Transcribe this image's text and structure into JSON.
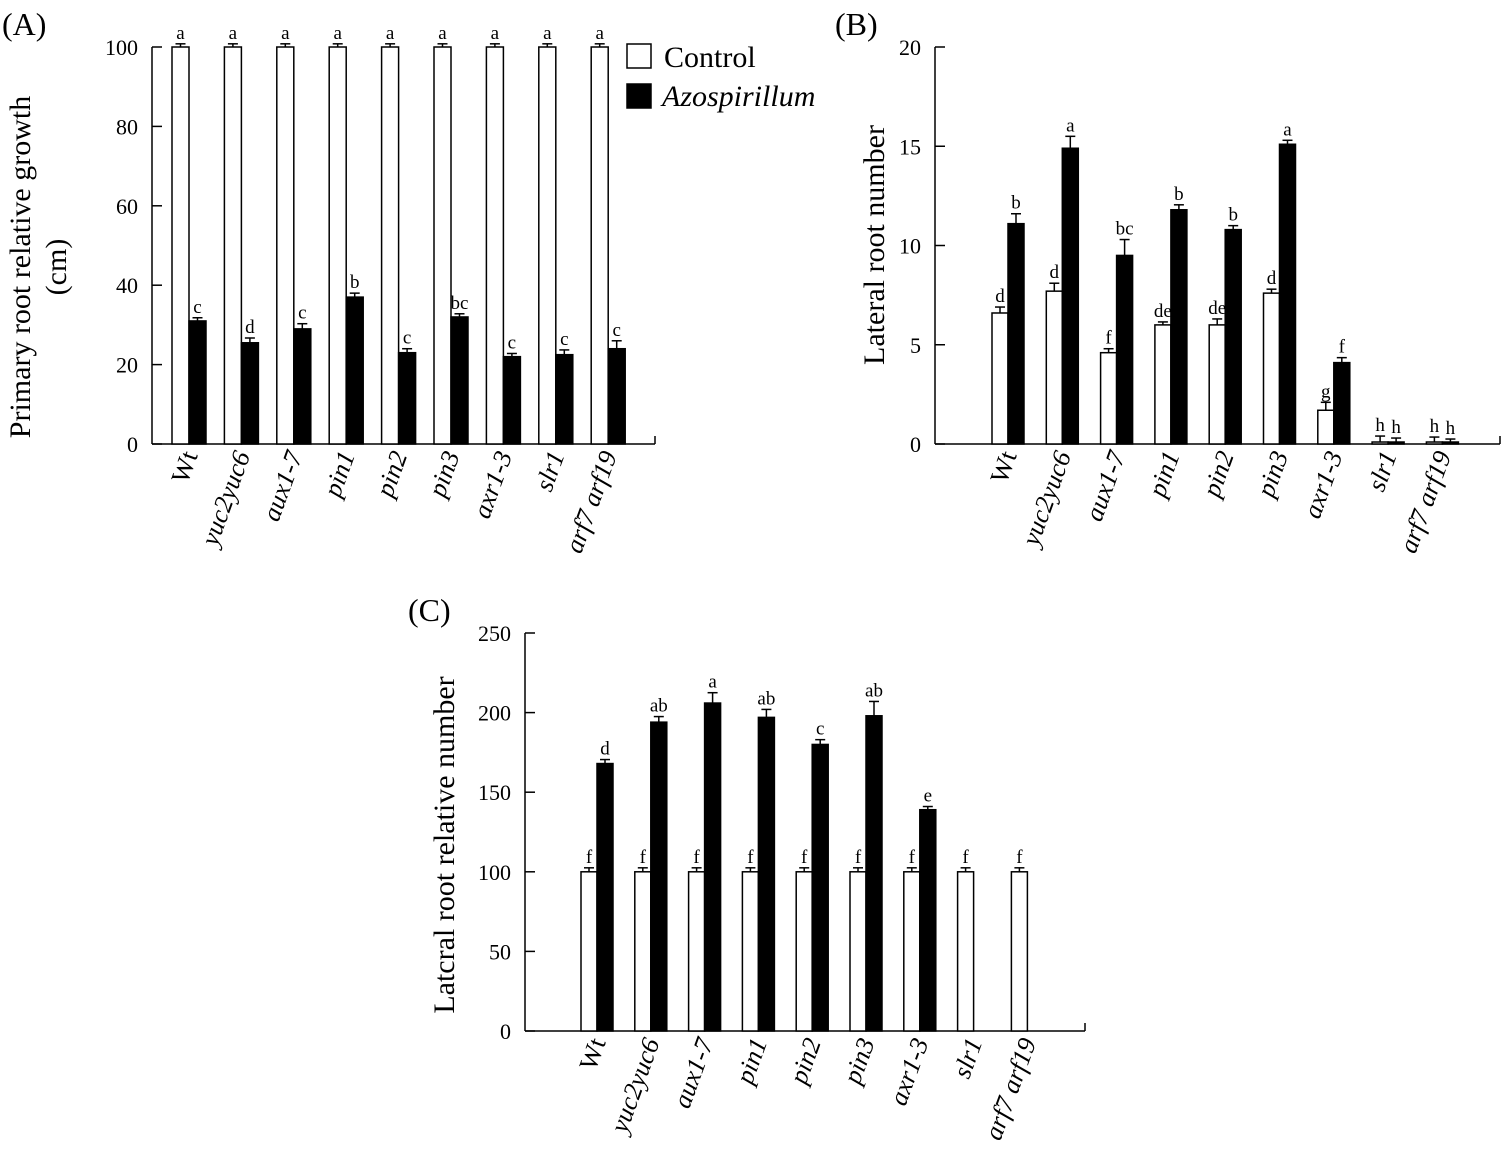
{
  "legend": {
    "control": "Control",
    "azospirillum": "Azospirillum"
  },
  "chart_data": [
    {
      "panel": "(A)",
      "type": "bar",
      "ylabel_lines": [
        "Primary root relative growth",
        "(cm)"
      ],
      "ylim": [
        0,
        100
      ],
      "yticks": [
        0,
        20,
        40,
        60,
        80,
        100
      ],
      "categories": [
        "Wt",
        "yuc2yuc6",
        "aux1-7",
        "pin1",
        "pin2",
        "pin3",
        "axr1-3",
        "slr1",
        "arf7 arf19"
      ],
      "series": [
        {
          "name": "Control",
          "values": [
            100,
            100,
            100,
            100,
            100,
            100,
            100,
            100,
            100
          ],
          "errors": [
            0.8,
            0.8,
            0.8,
            0.8,
            0.8,
            0.8,
            0.8,
            0.8,
            0.8
          ],
          "letters": [
            "a",
            "a",
            "a",
            "a",
            "a",
            "a",
            "a",
            "a",
            "a"
          ]
        },
        {
          "name": "Azospirillum",
          "values": [
            31,
            25.5,
            29,
            37,
            23,
            32,
            22,
            22.5,
            24
          ],
          "errors": [
            0.8,
            1.2,
            1.3,
            1.0,
            1.0,
            0.8,
            0.8,
            1.2,
            2.0
          ],
          "letters": [
            "c",
            "d",
            "c",
            "b",
            "c",
            "bc",
            "c",
            "c",
            "c"
          ]
        }
      ],
      "legend_position": "top-right"
    },
    {
      "panel": "(B)",
      "type": "bar",
      "ylabel_lines": [
        "Lateral root number"
      ],
      "ylim": [
        0,
        20
      ],
      "yticks": [
        0,
        5,
        10,
        15,
        20
      ],
      "categories": [
        "Wt",
        "yuc2yuc6",
        "aux1-7",
        "pin1",
        "pin2",
        "pin3",
        "axr1-3",
        "slr1",
        "arf7 arf19"
      ],
      "series": [
        {
          "name": "Control",
          "values": [
            6.6,
            7.7,
            4.6,
            6.0,
            6.0,
            7.6,
            1.7,
            0.1,
            0.1
          ],
          "errors": [
            0.3,
            0.4,
            0.2,
            0.15,
            0.3,
            0.2,
            0.4,
            0.3,
            0.25
          ],
          "letters": [
            "d",
            "d",
            "f",
            "de",
            "de",
            "d",
            "g",
            "h",
            "h"
          ]
        },
        {
          "name": "Azospirillum",
          "values": [
            11.1,
            14.9,
            9.5,
            11.8,
            10.8,
            15.1,
            4.1,
            0.1,
            0.1
          ],
          "errors": [
            0.5,
            0.6,
            0.8,
            0.25,
            0.2,
            0.2,
            0.25,
            0.2,
            0.15
          ],
          "letters": [
            "b",
            "a",
            "bc",
            "b",
            "b",
            "a",
            "f",
            "h",
            "h"
          ]
        }
      ]
    },
    {
      "panel": "(C)",
      "type": "bar",
      "ylabel_lines": [
        "Latcral root relative number"
      ],
      "ylim": [
        0,
        250
      ],
      "yticks": [
        0,
        50,
        100,
        150,
        200,
        250
      ],
      "categories": [
        "Wt",
        "yuc2yuc6",
        "aux1-7",
        "pin1",
        "pin2",
        "pin3",
        "axr1-3",
        "slr1",
        "arf7 arf19"
      ],
      "series": [
        {
          "name": "Control",
          "values": [
            100,
            100,
            100,
            100,
            100,
            100,
            100,
            100,
            100
          ],
          "errors": [
            2.5,
            2.5,
            2.5,
            2.5,
            2.5,
            2.5,
            2.5,
            2.5,
            2.5
          ],
          "letters": [
            "f",
            "f",
            "f",
            "f",
            "f",
            "f",
            "f",
            "f",
            "f"
          ]
        },
        {
          "name": "Azospirillum",
          "values": [
            168,
            194,
            206,
            197,
            180,
            198,
            139,
            null,
            null
          ],
          "errors": [
            2.5,
            3.5,
            6.5,
            5,
            3,
            9,
            2,
            null,
            null
          ],
          "letters": [
            "d",
            "ab",
            "a",
            "ab",
            "c",
            "ab",
            "e",
            "",
            ""
          ]
        }
      ]
    }
  ]
}
